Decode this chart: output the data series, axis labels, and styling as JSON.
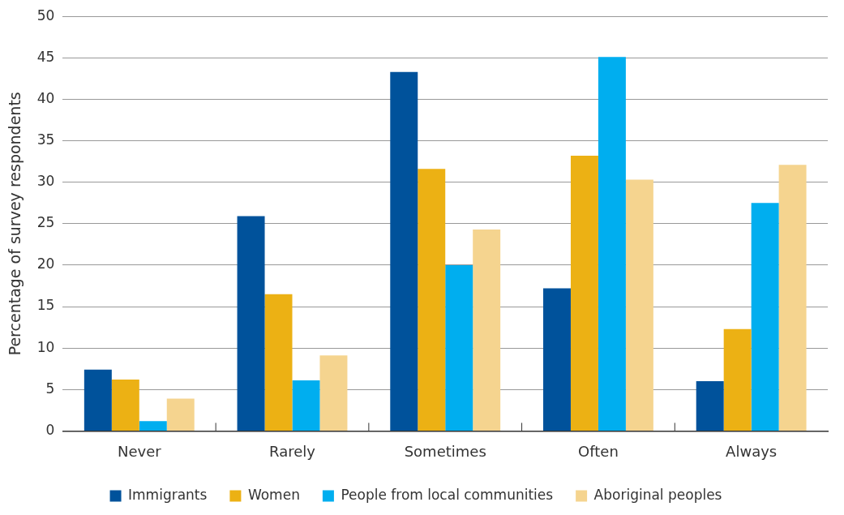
{
  "chart_data": {
    "type": "bar",
    "ylabel": "Percentage of survey respondents",
    "categories": [
      "Never",
      "Rarely",
      "Sometimes",
      "Often",
      "Always"
    ],
    "series": [
      {
        "name": "Immigrants",
        "color": "#00529b",
        "values": [
          7.4,
          25.9,
          43.3,
          17.2,
          6.0
        ]
      },
      {
        "name": "Women",
        "color": "#ecb114",
        "values": [
          6.2,
          16.5,
          31.6,
          33.2,
          12.3
        ]
      },
      {
        "name": "People from local communities",
        "color": "#00aeef",
        "values": [
          1.2,
          6.1,
          20.0,
          45.1,
          27.5
        ]
      },
      {
        "name": "Aboriginal peoples",
        "color": "#f5d48f",
        "values": [
          3.9,
          9.1,
          24.3,
          30.3,
          32.1
        ]
      }
    ],
    "ylim": [
      0,
      50
    ],
    "yticks": [
      0,
      5,
      10,
      15,
      20,
      25,
      30,
      35,
      40,
      45,
      50
    ],
    "grid": "y",
    "legend": "bottom"
  }
}
